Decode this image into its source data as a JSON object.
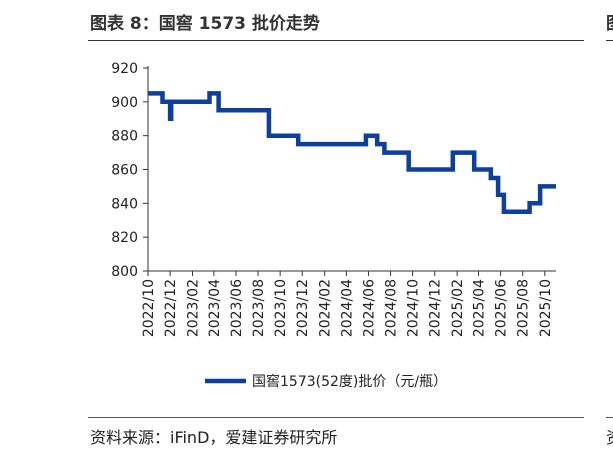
{
  "figure": {
    "title": "图表 8：国窖 1573 批价走势",
    "source": "资料来源：iFinD，爱建证券研究所",
    "cut_title_glyph": "图",
    "cut_source_glyph": "资"
  },
  "chart_data": {
    "type": "line",
    "step": true,
    "title": "",
    "xlabel": "",
    "ylabel": "",
    "ylim": [
      800,
      920
    ],
    "yticks": [
      800,
      820,
      840,
      860,
      880,
      900,
      920
    ],
    "xlim": [
      "2022-10-01",
      "2025-11-01"
    ],
    "xticks": [
      "2022/10",
      "2022/12",
      "2023/02",
      "2023/04",
      "2023/06",
      "2023/08",
      "2023/10",
      "2023/12",
      "2024/02",
      "2024/04",
      "2024/06",
      "2024/08",
      "2024/10",
      "2024/12",
      "2025/02",
      "2025/04",
      "2025/06",
      "2025/08",
      "2025/10"
    ],
    "grid": false,
    "legend": "bottom-center",
    "color": "#0d3f9e",
    "series": [
      {
        "name": "国窖1573(52度)批价（元/瓶）",
        "x": [
          "2022-10-01",
          "2022-11-10",
          "2022-12-01",
          "2022-12-04",
          "2022-12-14",
          "2023-03-20",
          "2023-04-14",
          "2023-08-31",
          "2023-11-20",
          "2024-05-25",
          "2024-06-25",
          "2024-07-15",
          "2024-09-20",
          "2025-01-20",
          "2025-03-20",
          "2025-05-05",
          "2025-05-25",
          "2025-06-10",
          "2025-08-20",
          "2025-09-18",
          "2025-11-01"
        ],
        "values": [
          905,
          900,
          890,
          900,
          900,
          905,
          895,
          880,
          875,
          880,
          875,
          870,
          860,
          870,
          860,
          855,
          845,
          835,
          840,
          850,
          850
        ]
      }
    ]
  }
}
